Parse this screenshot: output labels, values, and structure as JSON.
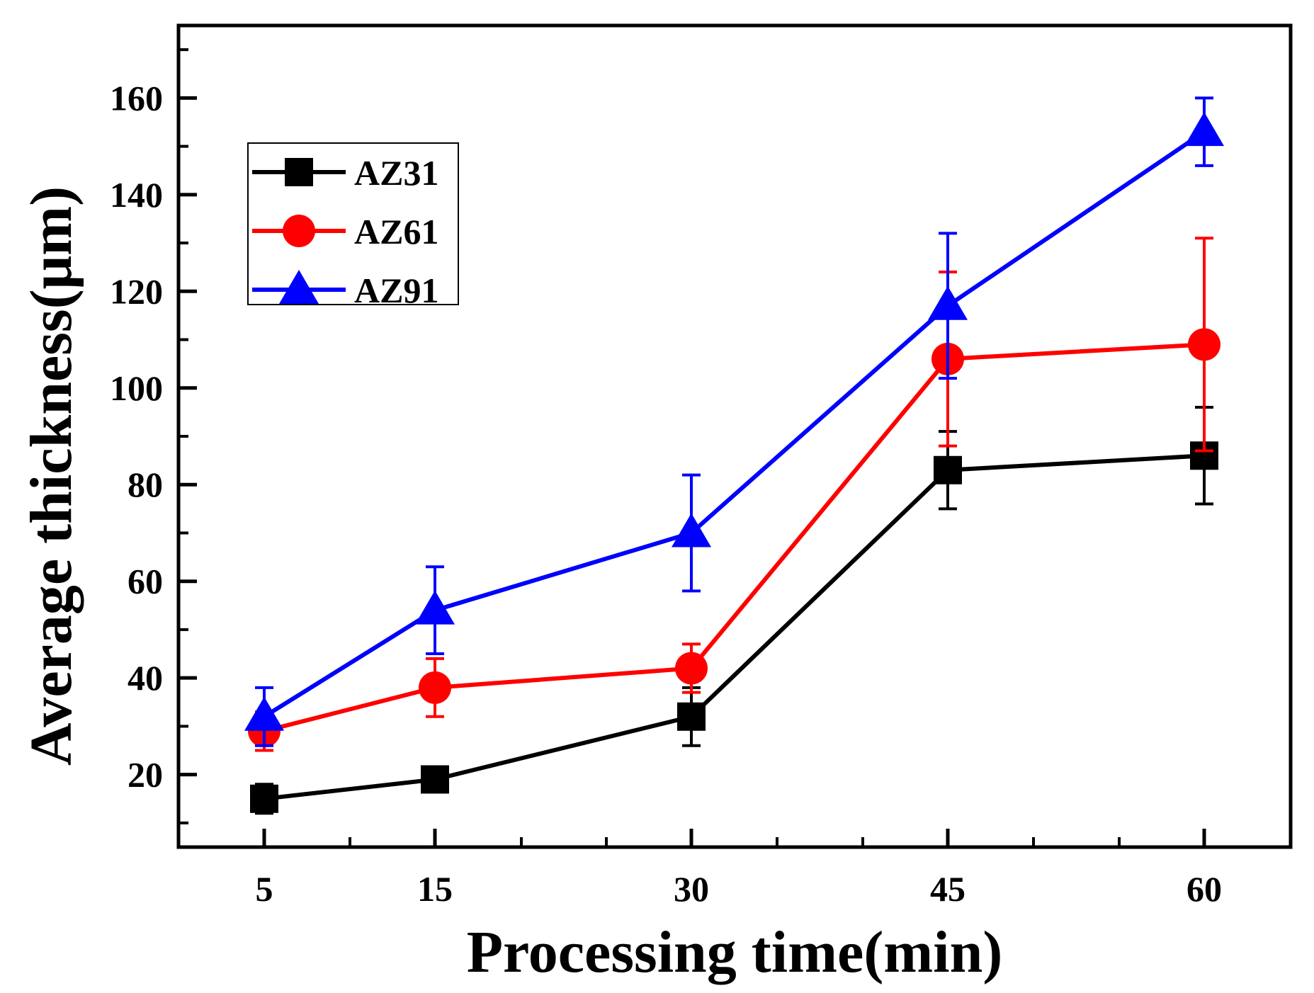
{
  "chart_data": {
    "type": "line",
    "xlabel": "Processing time(min)",
    "ylabel": "Average thickness(μm)",
    "x": [
      5,
      15,
      30,
      45,
      60
    ],
    "x_tick_labels": [
      "5",
      "15",
      "30",
      "45",
      "60"
    ],
    "ylim": [
      5,
      175
    ],
    "y_ticks": [
      20,
      40,
      60,
      80,
      100,
      120,
      140,
      160
    ],
    "y_tick_labels": [
      "20",
      "40",
      "60",
      "80",
      "100",
      "120",
      "140",
      "160"
    ],
    "legend_position": "top-left",
    "grid": false,
    "series": [
      {
        "name": "AZ31",
        "color": "#000000",
        "marker": "square",
        "values": [
          15,
          19,
          32,
          83,
          86
        ],
        "errors": [
          3,
          2,
          6,
          8,
          10
        ]
      },
      {
        "name": "AZ61",
        "color": "#ff0000",
        "marker": "circle",
        "values": [
          29,
          38,
          42,
          106,
          109
        ],
        "errors": [
          4,
          6,
          5,
          18,
          22
        ]
      },
      {
        "name": "AZ91",
        "color": "#0000ff",
        "marker": "triangle",
        "values": [
          32,
          54,
          70,
          117,
          153
        ],
        "errors": [
          6,
          9,
          12,
          15,
          7
        ]
      }
    ]
  }
}
